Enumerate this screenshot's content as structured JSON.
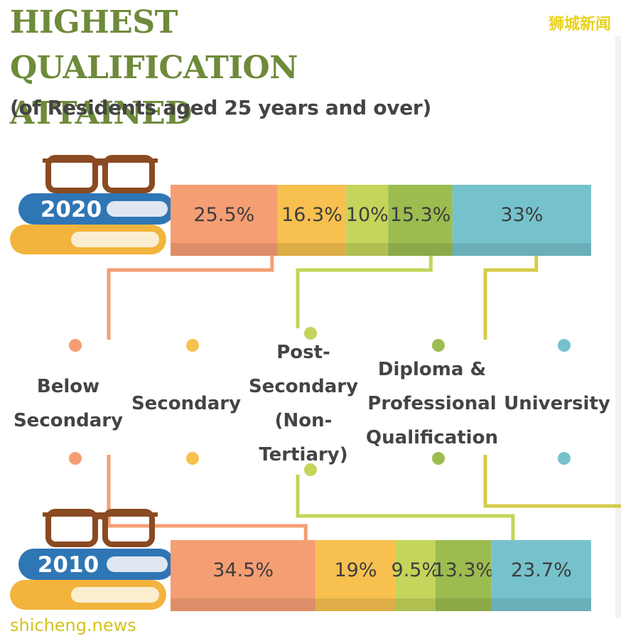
{
  "header": {
    "title": "HIGHEST QUALIFICATION ATTAINED",
    "subtitle": "(of Residents aged 25 years and over)",
    "brand": "狮城新闻"
  },
  "footer": {
    "site": "shicheng.news"
  },
  "chart_data": {
    "type": "bar",
    "stacked": true,
    "orientation": "horizontal",
    "unit": "%",
    "categories": [
      "2020",
      "2010"
    ],
    "series": [
      {
        "name": "Below Secondary",
        "values": [
          25.5,
          34.5
        ],
        "color": "#f59e73"
      },
      {
        "name": "Secondary",
        "values": [
          16.3,
          19
        ],
        "color": "#f7c04f"
      },
      {
        "name": "Post-Secondary (Non-Tertiary)",
        "values": [
          10,
          9.5
        ],
        "color": "#c5d45a"
      },
      {
        "name": "Diploma & Professional Qualification",
        "values": [
          15.3,
          13.3
        ],
        "color": "#9cbc4f"
      },
      {
        "name": "University",
        "values": [
          33,
          23.7
        ],
        "color": "#76c2cc"
      }
    ],
    "value_labels": [
      [
        "25.5%",
        "16.3%",
        "10%",
        "15.3%",
        "33%"
      ],
      [
        "34.5%",
        "19%",
        "9.5%",
        "13.3%",
        "23.7%"
      ]
    ]
  }
}
